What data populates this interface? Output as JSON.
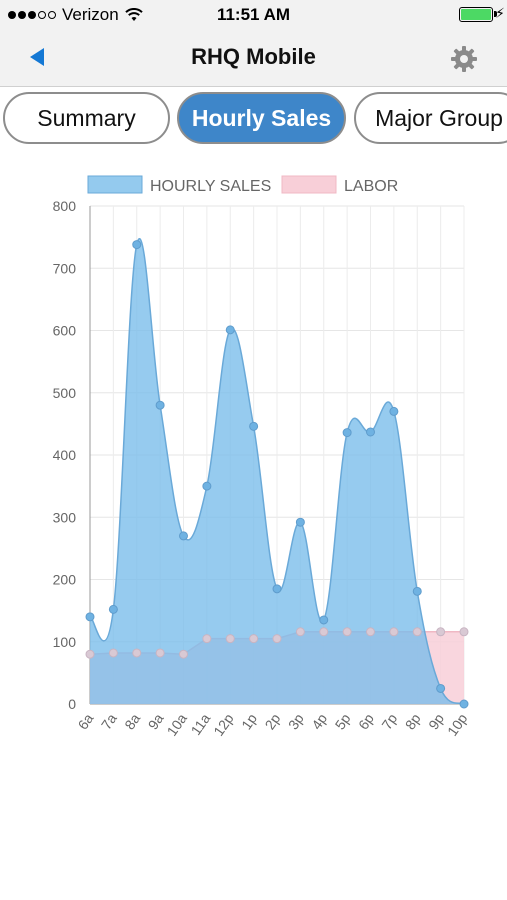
{
  "status_bar": {
    "carrier": "Verizon",
    "time": "11:51 AM",
    "signal_bars": 3,
    "battery_color": "#4cd964",
    "icons": [
      "signal-dots-icon",
      "wifi-icon",
      "battery-icon",
      "charging-bolt-icon"
    ]
  },
  "nav": {
    "title": "RHQ Mobile",
    "back_icon": "back-arrow-icon",
    "settings_icon": "gear-icon",
    "accent": "#1478d4"
  },
  "tabs": [
    {
      "label": "Summary",
      "active": false
    },
    {
      "label": "Hourly Sales",
      "active": true
    },
    {
      "label": "Major Group",
      "active": false
    }
  ],
  "chart_data": {
    "type": "area",
    "title": "",
    "xlabel": "",
    "ylabel": "",
    "legend_position": "top",
    "grid": true,
    "ylim": [
      0,
      800
    ],
    "yticks": [
      0,
      100,
      200,
      300,
      400,
      500,
      600,
      700,
      800
    ],
    "categories": [
      "6a",
      "7a",
      "8a",
      "9a",
      "10a",
      "11a",
      "12p",
      "1p",
      "2p",
      "3p",
      "4p",
      "5p",
      "6p",
      "7p",
      "8p",
      "9p",
      "10p"
    ],
    "series": [
      {
        "name": "HOURLY SALES",
        "color": "#79bdea",
        "values": [
          140,
          152,
          738,
          480,
          270,
          350,
          601,
          446,
          185,
          292,
          135,
          436,
          437,
          470,
          181,
          25,
          0
        ]
      },
      {
        "name": "LABOR",
        "color": "#f8cfd8",
        "values": [
          80,
          82,
          82,
          82,
          80,
          105,
          105,
          105,
          105,
          116,
          116,
          116,
          116,
          116,
          116,
          116,
          116
        ]
      }
    ]
  }
}
